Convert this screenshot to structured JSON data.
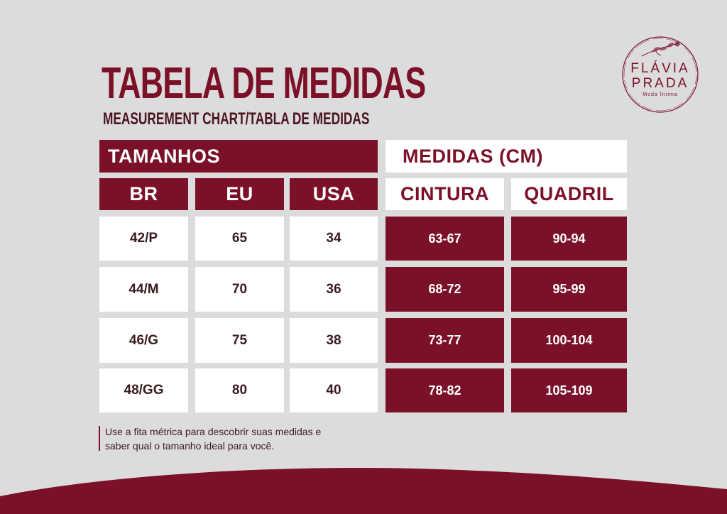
{
  "title": "TABELA DE MEDIDAS",
  "subtitle": "MEASUREMENT CHART/TABLA DE MEDIDAS",
  "logo": {
    "line1": "FLÁVIA",
    "line2": "PRADA",
    "tagline": "Moda Íntima",
    "icon": "flower-branch-icon"
  },
  "headers": {
    "sizes_group": "TAMANHOS",
    "measures_group": "MEDIDAS (CM)",
    "br": "BR",
    "eu": "EU",
    "usa": "USA",
    "waist": "CINTURA",
    "hip": "QUADRIL"
  },
  "rows": [
    {
      "br": "42/P",
      "eu": "65",
      "usa": "34",
      "waist": "63-67",
      "hip": "90-94"
    },
    {
      "br": "44/M",
      "eu": "70",
      "usa": "36",
      "waist": "68-72",
      "hip": "95-99"
    },
    {
      "br": "46/G",
      "eu": "75",
      "usa": "38",
      "waist": "73-77",
      "hip": "100-104"
    },
    {
      "br": "48/GG",
      "eu": "80",
      "usa": "40",
      "waist": "78-82",
      "hip": "105-109"
    }
  ],
  "note": {
    "line1": "Use a fita métrica para descobrir suas medidas e",
    "line2": "saber qual o tamanho ideal para você."
  },
  "colors": {
    "brand": "#7b1128",
    "background": "#dcdcdc",
    "cell": "#ffffff"
  }
}
